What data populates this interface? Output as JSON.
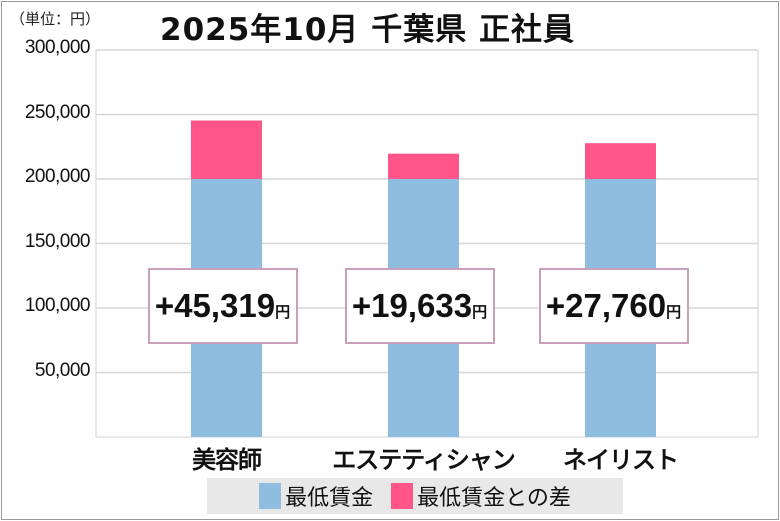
{
  "chart_data": {
    "type": "bar",
    "stacked": true,
    "title": "2025年10月 千葉県 正社員",
    "unit_label": "（単位：円）",
    "categories": [
      "美容師",
      "エステティシャン",
      "ネイリスト"
    ],
    "series": [
      {
        "name": "最低賃金",
        "values": [
          200000,
          200000,
          200000
        ],
        "color": "#8fbde0"
      },
      {
        "name": "最低賃金との差",
        "values": [
          45319,
          19633,
          27760
        ],
        "color": "#ff5588"
      }
    ],
    "data_labels": [
      "+45,319",
      "+19,633",
      "+27,760"
    ],
    "data_label_suffix": "円",
    "ylim": [
      0,
      300000
    ],
    "yticks": [
      50000,
      100000,
      150000,
      200000,
      250000,
      300000
    ],
    "ytick_labels": [
      "50,000",
      "100,000",
      "150,000",
      "200,000",
      "250,000",
      "300,000"
    ],
    "grid": true,
    "legend_position": "bottom"
  }
}
